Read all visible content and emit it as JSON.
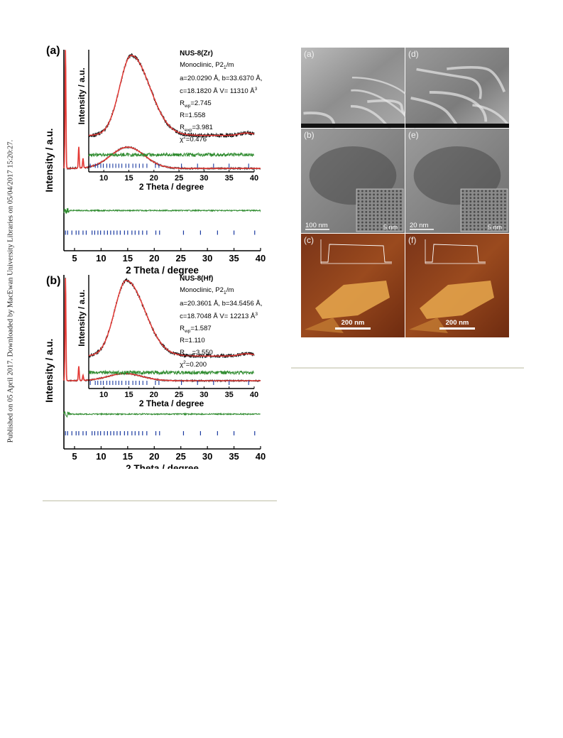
{
  "sidebar_text": "Published on 05 April 2017. Downloaded by MacEwan University Libraries on 05/04/2017 15:20:27.",
  "colors": {
    "observed": "#111111",
    "calculated": "#e53935",
    "difference": "#2e8b2e",
    "bragg": "#1a3aa0",
    "rule": "#dcdccf"
  },
  "left_figure": {
    "panels": [
      {
        "label": "(a)",
        "sample": "NUS-8(Zr)",
        "crystal": "Monoclinic, P2",
        "crystal_sub": "1",
        "crystal_suffix": "/m",
        "params_line1": "a=20.0290 Å,  b=33.6370 Å,",
        "params_line2": "c=18.1820 Å  V= 11310 Å",
        "vol_sup": "3",
        "rwp": "=2.745",
        "r": "R=1.558",
        "rexp": "=3.981",
        "chi": "=0.476"
      },
      {
        "label": "(b)",
        "sample": "NUS-8(Hf)",
        "crystal": "Monoclinic, P2",
        "crystal_sub": "1",
        "crystal_suffix": "/m",
        "params_line1": "a=20.3601 Å,  b=34.5456 Å,",
        "params_line2": "c=18.7048 Å  V= 12213 Å",
        "vol_sup": "3",
        "rwp": "=1.587",
        "r": "R=1.110",
        "rexp": "=3.550",
        "chi": "=0.200"
      }
    ],
    "labels": {
      "rwp": "R",
      "rwp_sub": "wp",
      "rexp": "R",
      "rexp_sub": "exp",
      "chi": "χ",
      "chi_sup": "2"
    }
  },
  "chart_data": [
    {
      "type": "line",
      "panel": "(a) main",
      "xlabel": "2 Theta / degree",
      "ylabel": "Intensity / a.u.",
      "xlim": [
        3,
        40
      ],
      "xticks": [
        5,
        10,
        15,
        20,
        25,
        30,
        35,
        40
      ],
      "series": [
        {
          "name": "",
          "values_description": ""
        }
      ],
      "peaks": [
        {
          "x": 3.3,
          "y": 1.0
        },
        {
          "x": 5.8,
          "y": 0.18
        },
        {
          "x": 6.6,
          "y": 0.08
        }
      ],
      "hump": {
        "center": 15,
        "height": 0.18,
        "baseline": 0.05
      },
      "bragg_ticks": [
        3.3,
        3.7,
        4.5,
        5.3,
        5.8,
        6.6,
        7.2,
        8.3,
        8.8,
        9.4,
        9.9,
        10.6,
        11.2,
        11.8,
        12.4,
        13.0,
        13.6,
        14.4,
        15.0,
        15.8,
        16.4,
        17.1,
        17.8,
        18.6,
        20.3,
        21.0,
        25.5,
        28.7,
        31.9,
        35.0,
        38.9
      ]
    },
    {
      "type": "line",
      "panel": "(a) inset",
      "xlabel": "2 Theta / degree",
      "ylabel": "Intensity / a.u.",
      "xlim": [
        7,
        40
      ],
      "xticks": [
        10,
        15,
        20,
        25,
        30,
        35,
        40
      ],
      "hump": {
        "center": 15.5,
        "height": 1.0,
        "baseline": 0.12
      },
      "bragg_ticks": [
        7.3,
        8.3,
        8.8,
        9.4,
        9.9,
        10.6,
        11.2,
        11.8,
        12.4,
        13.0,
        13.6,
        14.4,
        15.0,
        15.8,
        16.4,
        17.1,
        17.8,
        18.6,
        20.3,
        21.0,
        25.5,
        28.7,
        31.9,
        35.0,
        38.9
      ]
    },
    {
      "type": "line",
      "panel": "(b) main",
      "xlabel": "2 Theta / degree",
      "ylabel": "Intensity / a.u.",
      "xlim": [
        3,
        40
      ],
      "xticks": [
        5,
        10,
        15,
        20,
        25,
        30,
        35,
        40
      ],
      "peaks": [
        {
          "x": 3.3,
          "y": 1.0
        },
        {
          "x": 5.8,
          "y": 0.14
        },
        {
          "x": 6.6,
          "y": 0.05
        }
      ],
      "hump": {
        "center": 14.5,
        "height": 0.07,
        "baseline": 0.02
      },
      "bragg_ticks": [
        3.3,
        3.7,
        4.5,
        5.3,
        5.8,
        6.6,
        7.2,
        8.3,
        8.8,
        9.4,
        9.9,
        10.6,
        11.2,
        11.8,
        12.4,
        13.0,
        13.6,
        14.4,
        15.0,
        15.8,
        16.4,
        17.1,
        17.8,
        18.6,
        20.3,
        21.0,
        25.5,
        28.7,
        31.9,
        35.0,
        38.9
      ]
    },
    {
      "type": "line",
      "panel": "(b) inset",
      "xlabel": "2 Theta / degree",
      "ylabel": "Intensity / a.u.",
      "xlim": [
        7,
        40
      ],
      "xticks": [
        10,
        15,
        20,
        25,
        30,
        35,
        40
      ],
      "hump": {
        "center": 14.5,
        "height": 1.0,
        "baseline": 0.1
      },
      "bragg_ticks": [
        7.3,
        8.3,
        8.8,
        9.4,
        9.9,
        10.6,
        11.2,
        11.8,
        12.4,
        13.0,
        13.6,
        14.4,
        15.0,
        15.8,
        16.4,
        17.1,
        17.8,
        18.6,
        20.3,
        21.0,
        25.5,
        28.7,
        31.9,
        35.0,
        38.9
      ]
    }
  ],
  "right_figure": {
    "panels": [
      {
        "label": "(a)",
        "kind": "SEM"
      },
      {
        "label": "(d)",
        "kind": "SEM"
      },
      {
        "label": "(b)",
        "kind": "TEM",
        "scale": "100 nm",
        "inset_scale": "5 nm"
      },
      {
        "label": "(e)",
        "kind": "TEM",
        "scale": "20 nm",
        "inset_scale": "5 nm"
      },
      {
        "label": "(c)",
        "kind": "AFM",
        "scale": "200 nm"
      },
      {
        "label": "(f)",
        "kind": "AFM",
        "scale": "200 nm"
      }
    ]
  }
}
